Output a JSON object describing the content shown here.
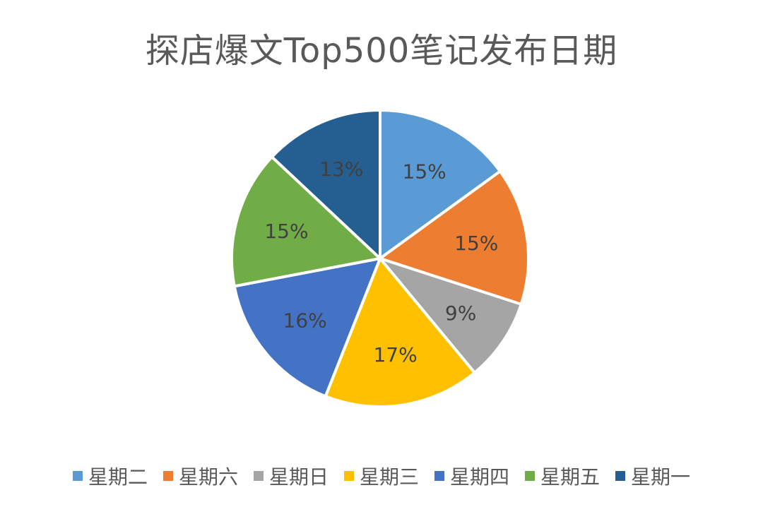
{
  "chart_data": {
    "type": "pie",
    "title": "探店爆文Top500笔记发布日期",
    "categories": [
      "星期二",
      "星期六",
      "星期日",
      "星期三",
      "星期四",
      "星期五",
      "星期一"
    ],
    "values": [
      15,
      15,
      9,
      17,
      16,
      15,
      13
    ],
    "labels": [
      "15%",
      "15%",
      "9%",
      "17%",
      "16%",
      "15%",
      "13%"
    ],
    "colors": [
      "#5B9BD5",
      "#ED7D31",
      "#A5A5A5",
      "#FFC000",
      "#4472C4",
      "#70AD47",
      "#255E91"
    ],
    "legend_position": "bottom",
    "start": "12 o'clock",
    "direction": "clockwise"
  }
}
